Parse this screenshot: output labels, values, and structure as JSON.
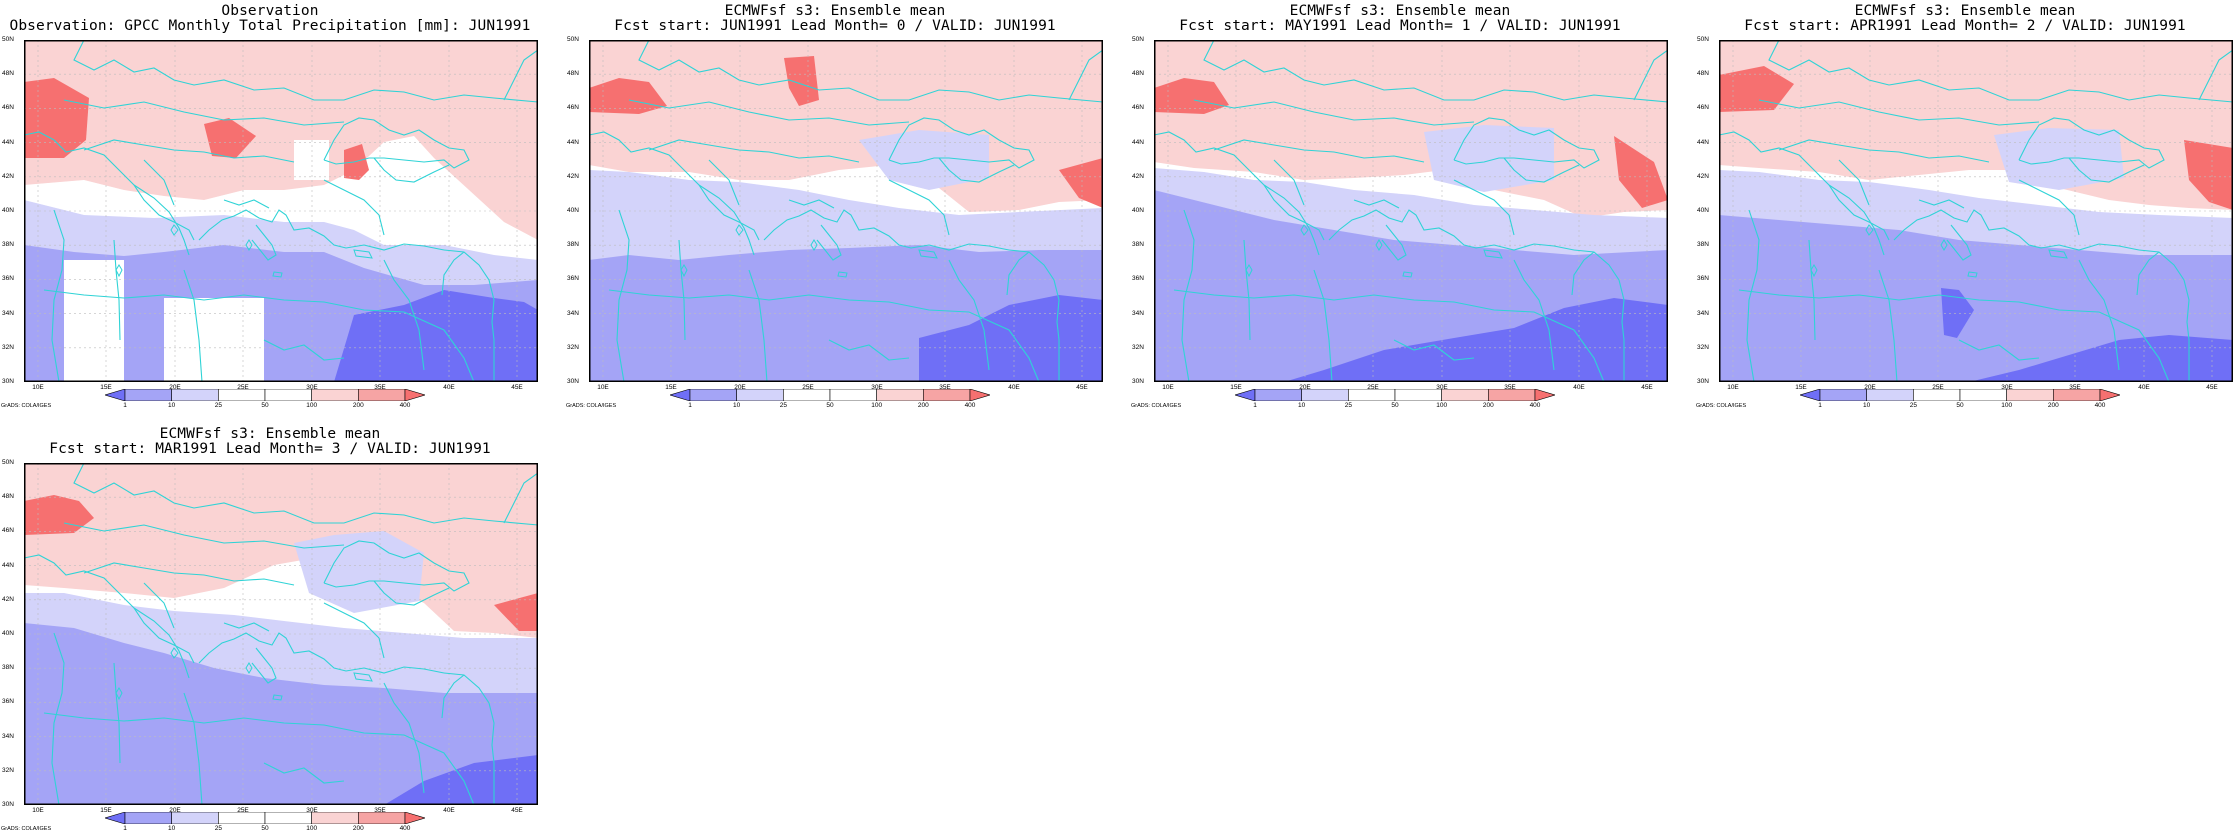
{
  "panels": [
    {
      "title1": "Observation",
      "title2": "Observation: GPCC Monthly Total Precipitation [mm]: JUN1991"
    },
    {
      "title1": "ECMWFsf s3: Ensemble mean",
      "title2": "Fcst start: JUN1991  Lead Month= 0 / VALID: JUN1991"
    },
    {
      "title1": "ECMWFsf s3: Ensemble mean",
      "title2": "Fcst start: MAY1991  Lead Month= 1 / VALID: JUN1991"
    },
    {
      "title1": "ECMWFsf s3: Ensemble mean",
      "title2": "Fcst start: APR1991  Lead Month= 2 / VALID: JUN1991"
    },
    {
      "title1": "ECMWFsf s3: Ensemble mean",
      "title2": "Fcst start: MAR1991  Lead Month= 3 / VALID: JUN1991"
    }
  ],
  "lat_labels": [
    "50N",
    "48N",
    "46N",
    "44N",
    "42N",
    "40N",
    "38N",
    "36N",
    "34N",
    "32N",
    "30N"
  ],
  "lon_labels": [
    "10E",
    "15E",
    "20E",
    "25E",
    "30E",
    "35E",
    "40E",
    "45E"
  ],
  "colorbar_labels": [
    "1",
    "10",
    "25",
    "50",
    "100",
    "200",
    "400"
  ],
  "credit": "GrADS: COLA/IGES",
  "colors": {
    "deep_blue": "#6f6ff6",
    "mid_blue": "#a4a4f6",
    "light_blue": "#d3d3fa",
    "white": "#ffffff",
    "light_red": "#fad3d3",
    "mid_red": "#f6a4a4",
    "deep_red": "#f67070",
    "coast": "#2fd3d6"
  }
}
